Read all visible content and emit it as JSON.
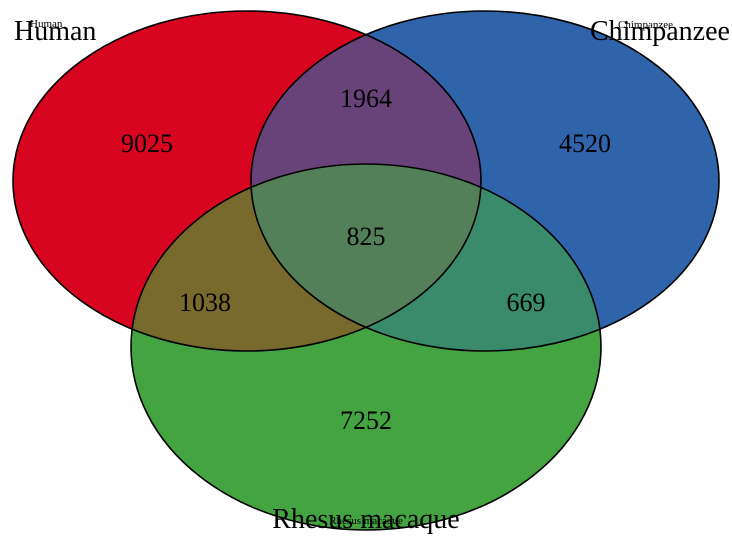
{
  "chart_data": {
    "type": "venn",
    "sets": [
      {
        "name": "Human",
        "color": "#d7051f"
      },
      {
        "name": "Chimpanzee",
        "color": "#2f64ab"
      },
      {
        "name": "Rhesus macaque",
        "color": "#44a442"
      }
    ],
    "regions": [
      {
        "sets": [
          "Human"
        ],
        "value": "9025"
      },
      {
        "sets": [
          "Chimpanzee"
        ],
        "value": "4520"
      },
      {
        "sets": [
          "Rhesus macaque"
        ],
        "value": "7252"
      },
      {
        "sets": [
          "Human",
          "Chimpanzee"
        ],
        "value": "1964"
      },
      {
        "sets": [
          "Human",
          "Rhesus macaque"
        ],
        "value": "1038"
      },
      {
        "sets": [
          "Chimpanzee",
          "Rhesus macaque"
        ],
        "value": "669"
      },
      {
        "sets": [
          "Human",
          "Chimpanzee",
          "Rhesus macaque"
        ],
        "value": "825"
      }
    ],
    "colors": {
      "human_chimp": "#68437a",
      "human_rhesus": "#786a2c",
      "chimp_rhesus": "#3a8a6c",
      "all_three": "#538058",
      "outline": "#000000"
    }
  }
}
